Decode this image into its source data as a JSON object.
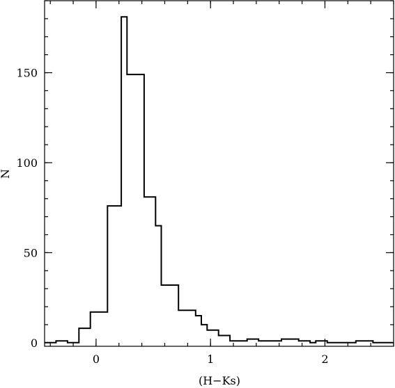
{
  "chart_data": {
    "type": "histogram",
    "xlabel": "(H−Ks)",
    "ylabel": "N",
    "xlim": [
      -0.45,
      2.6
    ],
    "ylim": [
      -2,
      190
    ],
    "x_ticks": [
      0,
      1,
      2
    ],
    "x_tick_labels": [
      "0",
      "1",
      "2"
    ],
    "y_ticks": [
      0,
      50,
      100,
      150
    ],
    "y_tick_labels": [
      "0",
      "50",
      "100",
      "150"
    ],
    "x_minor_step": 0.2,
    "y_minor_step": 10,
    "grid": false,
    "bins": [
      {
        "x0": -0.45,
        "x1": -0.35,
        "n": 0
      },
      {
        "x0": -0.35,
        "x1": -0.25,
        "n": 1
      },
      {
        "x0": -0.25,
        "x1": -0.15,
        "n": 0
      },
      {
        "x0": -0.15,
        "x1": -0.05,
        "n": 8
      },
      {
        "x0": -0.05,
        "x1": 0.1,
        "n": 17
      },
      {
        "x0": 0.1,
        "x1": 0.22,
        "n": 76
      },
      {
        "x0": 0.22,
        "x1": 0.27,
        "n": 181
      },
      {
        "x0": 0.27,
        "x1": 0.42,
        "n": 149
      },
      {
        "x0": 0.42,
        "x1": 0.52,
        "n": 81
      },
      {
        "x0": 0.52,
        "x1": 0.57,
        "n": 65
      },
      {
        "x0": 0.57,
        "x1": 0.72,
        "n": 32
      },
      {
        "x0": 0.72,
        "x1": 0.87,
        "n": 18
      },
      {
        "x0": 0.87,
        "x1": 0.92,
        "n": 15
      },
      {
        "x0": 0.92,
        "x1": 0.97,
        "n": 10
      },
      {
        "x0": 0.97,
        "x1": 1.07,
        "n": 7
      },
      {
        "x0": 1.07,
        "x1": 1.17,
        "n": 4
      },
      {
        "x0": 1.17,
        "x1": 1.32,
        "n": 1
      },
      {
        "x0": 1.32,
        "x1": 1.42,
        "n": 2
      },
      {
        "x0": 1.42,
        "x1": 1.62,
        "n": 1
      },
      {
        "x0": 1.62,
        "x1": 1.77,
        "n": 2
      },
      {
        "x0": 1.77,
        "x1": 1.87,
        "n": 1
      },
      {
        "x0": 1.87,
        "x1": 1.92,
        "n": 0
      },
      {
        "x0": 1.92,
        "x1": 2.02,
        "n": 1
      },
      {
        "x0": 2.02,
        "x1": 2.27,
        "n": 0
      },
      {
        "x0": 2.27,
        "x1": 2.42,
        "n": 1
      },
      {
        "x0": 2.42,
        "x1": 2.6,
        "n": 0
      }
    ]
  }
}
